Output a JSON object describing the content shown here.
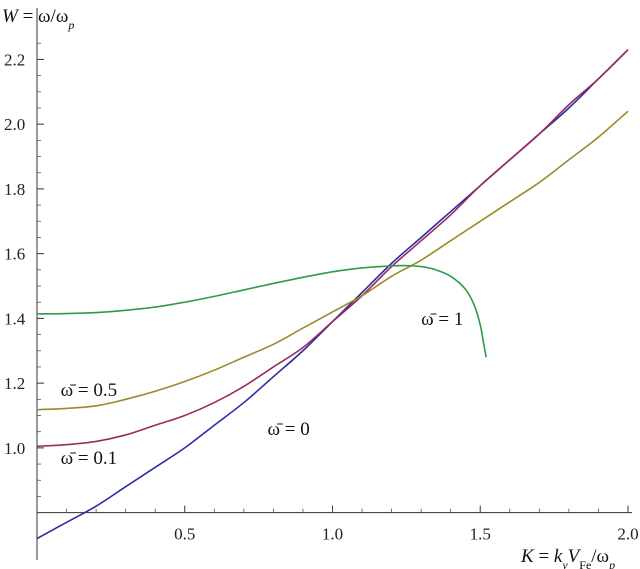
{
  "chart_data": {
    "type": "line",
    "ylabel": "W = ω/ω_p",
    "xlabel": "K = k_y V_Fe/ω_p",
    "xlim": [
      0,
      2.0
    ],
    "ylim": [
      0.7,
      2.26
    ],
    "x_axis_crossing_y": 0.8,
    "x_ticks": [
      "0.5",
      "1.0",
      "1.5",
      "2.0"
    ],
    "y_ticks": [
      "1.0",
      "1.2",
      "1.4",
      "1.6",
      "1.8",
      "2.0",
      "2.2"
    ],
    "grid": false,
    "series": [
      {
        "name": "ω̄ = 0",
        "color": "#2b2ba8",
        "x": [
          0,
          0.1,
          0.2,
          0.3,
          0.4,
          0.5,
          0.6,
          0.7,
          0.8,
          0.9,
          1.0,
          1.1,
          1.2,
          1.3,
          1.4,
          1.5,
          1.6,
          1.7,
          1.8,
          1.9,
          2.0
        ],
        "y": [
          0.72,
          0.77,
          0.82,
          0.88,
          0.94,
          1.0,
          1.07,
          1.14,
          1.22,
          1.3,
          1.39,
          1.48,
          1.57,
          1.65,
          1.73,
          1.81,
          1.89,
          1.97,
          2.05,
          2.14,
          2.23
        ]
      },
      {
        "name": "ω̄ = 0.1",
        "color": "#9c2a5e",
        "x": [
          0,
          0.1,
          0.2,
          0.3,
          0.4,
          0.5,
          0.6,
          0.7,
          0.8,
          0.9,
          1.0,
          1.1,
          1.2,
          1.3,
          1.4,
          1.5,
          1.6,
          1.7,
          1.8,
          1.9,
          2.0
        ],
        "y": [
          1.005,
          1.01,
          1.02,
          1.04,
          1.07,
          1.1,
          1.14,
          1.19,
          1.25,
          1.31,
          1.39,
          1.47,
          1.56,
          1.64,
          1.72,
          1.81,
          1.89,
          1.97,
          2.06,
          2.14,
          2.23
        ]
      },
      {
        "name": "ω̄ = 0.5",
        "color": "#9a8a2a",
        "x": [
          0,
          0.1,
          0.2,
          0.3,
          0.4,
          0.5,
          0.6,
          0.7,
          0.8,
          0.9,
          1.0,
          1.1,
          1.2,
          1.3,
          1.4,
          1.5,
          1.6,
          1.7,
          1.8,
          1.9,
          2.0
        ],
        "y": [
          1.118,
          1.122,
          1.13,
          1.15,
          1.175,
          1.205,
          1.24,
          1.28,
          1.32,
          1.37,
          1.42,
          1.47,
          1.53,
          1.58,
          1.64,
          1.7,
          1.76,
          1.82,
          1.89,
          1.96,
          2.04
        ]
      },
      {
        "name": "ω̄ = 1",
        "color": "#2f9a4a",
        "x": [
          0,
          0.1,
          0.2,
          0.3,
          0.4,
          0.5,
          0.6,
          0.7,
          0.8,
          0.9,
          1.0,
          1.1,
          1.2,
          1.25,
          1.3,
          1.35,
          1.4,
          1.45,
          1.48,
          1.5,
          1.51,
          1.52
        ],
        "y": [
          1.414,
          1.415,
          1.418,
          1.425,
          1.435,
          1.45,
          1.468,
          1.488,
          1.508,
          1.527,
          1.544,
          1.556,
          1.562,
          1.563,
          1.56,
          1.55,
          1.53,
          1.49,
          1.44,
          1.38,
          1.33,
          1.28
        ]
      }
    ],
    "annotations": [
      {
        "text": "ω̄ = 1",
        "x": 1.3,
        "y": 1.38
      },
      {
        "text": "ω̄ = 0.5",
        "x": 0.08,
        "y": 1.16
      },
      {
        "text": "ω̄ = 0",
        "x": 0.78,
        "y": 1.04
      },
      {
        "text": "ω̄ = 0.1",
        "x": 0.08,
        "y": 0.95
      }
    ]
  }
}
